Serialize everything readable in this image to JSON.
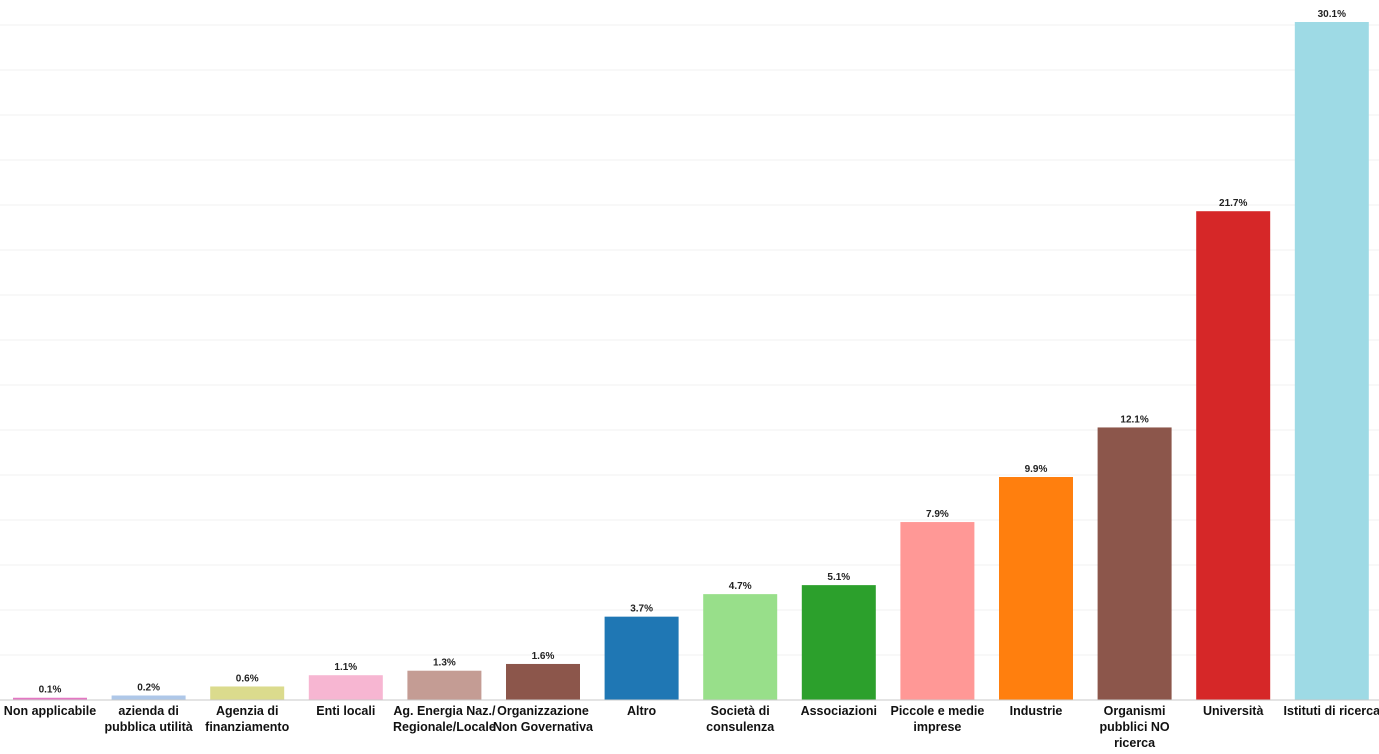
{
  "chart_data": {
    "type": "bar",
    "categories": [
      "Non applicabile",
      "azienda di pubblica utilità",
      "Agenzia di finanziamento",
      "Enti locali",
      "Ag. Energia Naz./ Regionale/Locale",
      "Organizzazione Non Governativa",
      "Altro",
      "Società di consulenza",
      "Associazioni",
      "Piccole e medie imprese",
      "Industrie",
      "Organismi pubblici NO ricerca",
      "Università",
      "Istituti di ricerca"
    ],
    "category_lines": [
      [
        "Non applicabile"
      ],
      [
        "azienda di",
        "pubblica utilità"
      ],
      [
        "Agenzia di",
        "finanziamento"
      ],
      [
        "Enti locali"
      ],
      [
        "Ag. Energia Naz./",
        "Regionale/Locale"
      ],
      [
        "Organizzazione",
        "Non Governativa"
      ],
      [
        "Altro"
      ],
      [
        "Società di",
        "consulenza"
      ],
      [
        "Associazioni"
      ],
      [
        "Piccole e medie",
        "imprese"
      ],
      [
        "Industrie"
      ],
      [
        "Organismi",
        "pubblici NO",
        "ricerca"
      ],
      [
        "Università"
      ],
      [
        "Istituti di ricerca"
      ]
    ],
    "values": [
      0.1,
      0.2,
      0.6,
      1.1,
      1.3,
      1.6,
      3.7,
      4.7,
      5.1,
      7.9,
      9.9,
      12.1,
      21.7,
      30.1
    ],
    "value_labels": [
      "0.1%",
      "0.2%",
      "0.6%",
      "1.1%",
      "1.3%",
      "1.6%",
      "3.7%",
      "4.7%",
      "5.1%",
      "7.9%",
      "9.9%",
      "12.1%",
      "21.7%",
      "30.1%"
    ],
    "colors": [
      "#e377c2",
      "#aec7e8",
      "#dbdb8d",
      "#f7b6d2",
      "#c49c94",
      "#8c564b",
      "#1f77b4",
      "#98df8a",
      "#2ca02c",
      "#ff9896",
      "#ff7f0e",
      "#8c564b",
      "#d62728",
      "#9edae5"
    ],
    "ylim": [
      0,
      30.1
    ],
    "grid": true,
    "title": "",
    "xlabel": "",
    "ylabel": ""
  }
}
